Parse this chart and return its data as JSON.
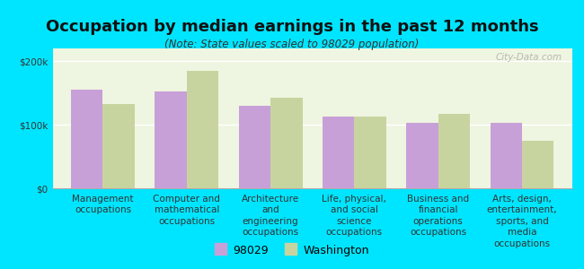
{
  "title": "Occupation by median earnings in the past 12 months",
  "subtitle": "(Note: State values scaled to 98029 population)",
  "categories": [
    "Management\noccupations",
    "Computer and\nmathematical\noccupations",
    "Architecture\nand\nengineering\noccupations",
    "Life, physical,\nand social\nscience\noccupations",
    "Business and\nfinancial\noperations\noccupations",
    "Arts, design,\nentertainment,\nsports, and\nmedia\noccupations"
  ],
  "values_98029": [
    155000,
    152000,
    130000,
    113000,
    103000,
    103000
  ],
  "values_washington": [
    133000,
    185000,
    143000,
    113000,
    117000,
    75000
  ],
  "color_98029": "#c8a0d8",
  "color_washington": "#c8d4a0",
  "background_outer": "#00e5ff",
  "background_plot": "#eef5e0",
  "ylim": [
    0,
    220000
  ],
  "yticks": [
    0,
    100000,
    200000
  ],
  "ytick_labels": [
    "$0",
    "$100k",
    "$200k"
  ],
  "legend_98029": "98029",
  "legend_washington": "Washington",
  "watermark": "City-Data.com",
  "title_fontsize": 13,
  "subtitle_fontsize": 8.5,
  "tick_label_fontsize": 7.5,
  "legend_fontsize": 9
}
